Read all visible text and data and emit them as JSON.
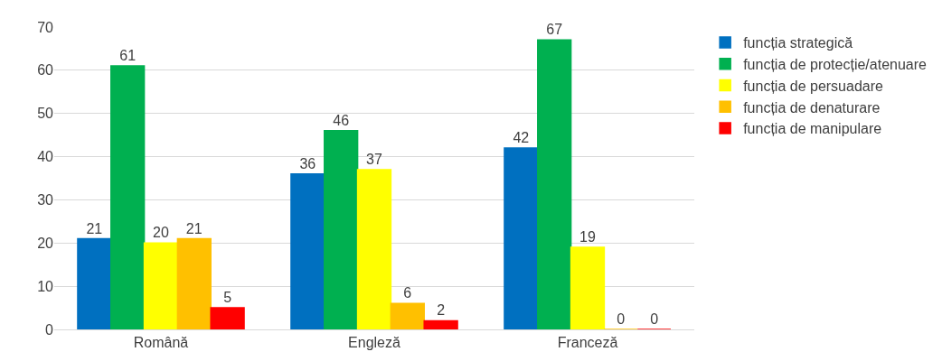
{
  "chart_data": {
    "type": "bar",
    "categories": [
      "Română",
      "Engleză",
      "Franceză"
    ],
    "series": [
      {
        "name": "funcția strategică",
        "color": "#0070c0",
        "values": [
          21,
          36,
          42
        ]
      },
      {
        "name": "funcția de protecție/atenuare",
        "color": "#00b050",
        "values": [
          61,
          46,
          67
        ]
      },
      {
        "name": "funcția de persuadare",
        "color": "#ffff00",
        "values": [
          20,
          37,
          19
        ]
      },
      {
        "name": "funcția de denaturare",
        "color": "#ffc000",
        "values": [
          21,
          6,
          0
        ]
      },
      {
        "name": "funcția de manipulare",
        "color": "#ff0000",
        "values": [
          5,
          2,
          0
        ]
      }
    ],
    "ylim": [
      0,
      70
    ],
    "yticks": [
      0,
      10,
      20,
      30,
      40,
      50,
      60,
      70
    ],
    "grid": "y",
    "legend": "right",
    "data_labels": true
  }
}
